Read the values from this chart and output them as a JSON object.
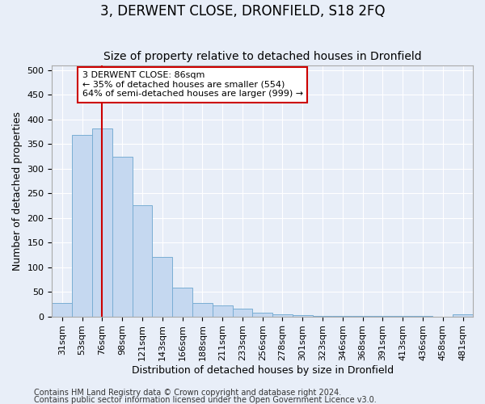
{
  "title": "3, DERWENT CLOSE, DRONFIELD, S18 2FQ",
  "subtitle": "Size of property relative to detached houses in Dronfield",
  "xlabel": "Distribution of detached houses by size in Dronfield",
  "ylabel": "Number of detached properties",
  "footer1": "Contains HM Land Registry data © Crown copyright and database right 2024.",
  "footer2": "Contains public sector information licensed under the Open Government Licence v3.0.",
  "bin_labels": [
    "31sqm",
    "53sqm",
    "76sqm",
    "98sqm",
    "121sqm",
    "143sqm",
    "166sqm",
    "188sqm",
    "211sqm",
    "233sqm",
    "256sqm",
    "278sqm",
    "301sqm",
    "323sqm",
    "346sqm",
    "368sqm",
    "391sqm",
    "413sqm",
    "436sqm",
    "458sqm",
    "481sqm"
  ],
  "bar_values": [
    28,
    368,
    382,
    325,
    226,
    121,
    58,
    27,
    22,
    16,
    7,
    5,
    2,
    1,
    1,
    1,
    1,
    1,
    1,
    0,
    5
  ],
  "bar_color": "#c5d8f0",
  "bar_edge_color": "#7aaed4",
  "vline_x_idx": 2,
  "vline_color": "#cc0000",
  "annotation_line1": "3 DERWENT CLOSE: 86sqm",
  "annotation_line2": "← 35% of detached houses are smaller (554)",
  "annotation_line3": "64% of semi-detached houses are larger (999) →",
  "annotation_box_color": "#ffffff",
  "annotation_box_edge": "#cc0000",
  "ylim": [
    0,
    510
  ],
  "yticks": [
    0,
    50,
    100,
    150,
    200,
    250,
    300,
    350,
    400,
    450,
    500
  ],
  "background_color": "#e8eef8",
  "grid_color": "#ffffff",
  "title_fontsize": 12,
  "subtitle_fontsize": 10,
  "axis_label_fontsize": 9,
  "tick_fontsize": 8,
  "footer_fontsize": 7
}
